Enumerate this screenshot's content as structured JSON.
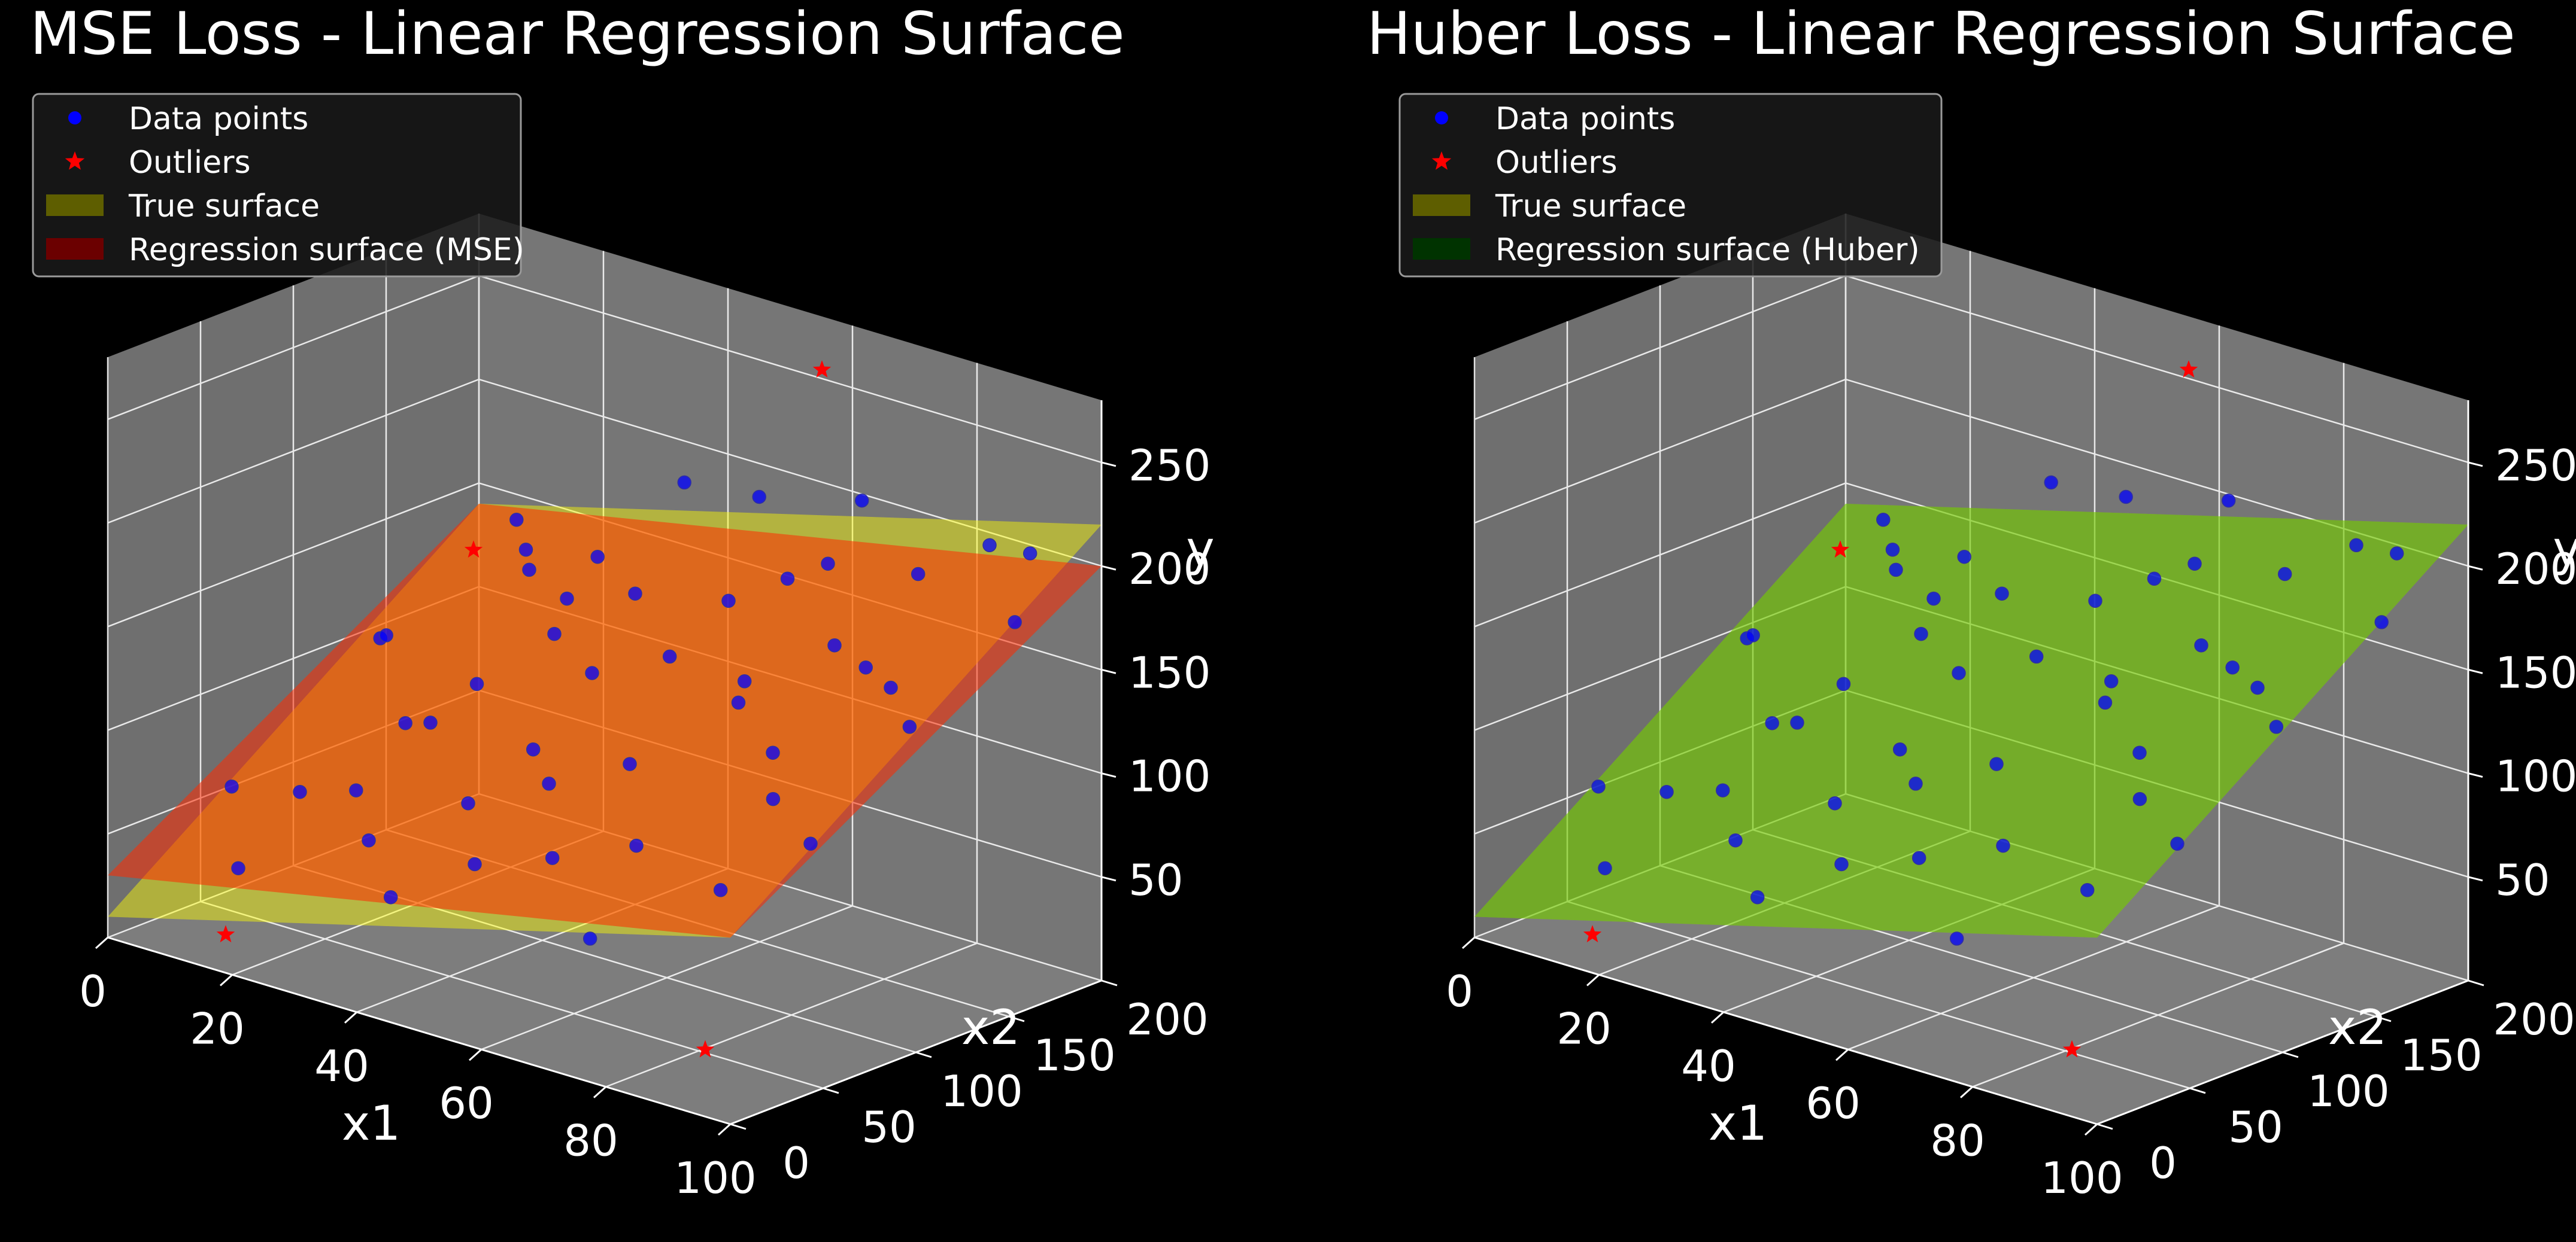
{
  "figure": {
    "background": "#000000",
    "pane_color": "#7a7a7a",
    "grid_color": "#ffffff"
  },
  "chart_data": [
    {
      "type": "scatter-3d",
      "title": "MSE Loss - Linear Regression Surface",
      "xlabel": "x1",
      "ylabel": "x2",
      "zlabel": "y",
      "xlim": [
        0,
        100
      ],
      "ylim": [
        0,
        200
      ],
      "zlim": [
        0,
        280
      ],
      "xticks": [
        0,
        20,
        40,
        60,
        80,
        100
      ],
      "yticks": [
        0,
        50,
        100,
        150,
        200
      ],
      "zticks": [
        50,
        100,
        150,
        200,
        250
      ],
      "grid": true,
      "legend_position": "top-left",
      "legend": [
        {
          "label": "Data points",
          "marker": "dot",
          "color": "#0000ff"
        },
        {
          "label": "Outliers",
          "marker": "star",
          "color": "#ff0000"
        },
        {
          "label": "True surface",
          "marker": "patch",
          "color": "#5e5e00"
        },
        {
          "label": "Regression surface (MSE)",
          "marker": "patch",
          "color": "#6b0000"
        }
      ],
      "surfaces": [
        {
          "name": "True surface",
          "color": "#ffff00",
          "opacity": 0.45,
          "intercept": 10,
          "coef_x1": 0.8,
          "coef_x2": 0.65
        },
        {
          "name": "Regression surface (MSE)",
          "color": "#ff2a00",
          "opacity": 0.55,
          "intercept": 30,
          "coef_x1": 0.6,
          "coef_x2": 0.55
        }
      ],
      "points": [
        {
          "x": 5,
          "y": 50,
          "z": 60
        },
        {
          "x": 10,
          "y": 70,
          "z": 55
        },
        {
          "x": 15,
          "y": 20,
          "z": 40
        },
        {
          "x": 20,
          "y": 160,
          "z": 140
        },
        {
          "x": 8,
          "y": 120,
          "z": 110
        },
        {
          "x": 25,
          "y": 90,
          "z": 95
        },
        {
          "x": 30,
          "y": 40,
          "z": 60
        },
        {
          "x": 12,
          "y": 180,
          "z": 150
        },
        {
          "x": 35,
          "y": 130,
          "z": 150
        },
        {
          "x": 40,
          "y": 60,
          "z": 80
        },
        {
          "x": 45,
          "y": 110,
          "z": 130
        },
        {
          "x": 50,
          "y": 30,
          "z": 70
        },
        {
          "x": 55,
          "y": 150,
          "z": 160
        },
        {
          "x": 60,
          "y": 80,
          "z": 110
        },
        {
          "x": 65,
          "y": 170,
          "z": 180
        },
        {
          "x": 70,
          "y": 50,
          "z": 90
        },
        {
          "x": 75,
          "y": 140,
          "z": 160
        },
        {
          "x": 80,
          "y": 90,
          "z": 130
        },
        {
          "x": 85,
          "y": 190,
          "z": 200
        },
        {
          "x": 90,
          "y": 120,
          "z": 160
        },
        {
          "x": 95,
          "y": 60,
          "z": 110
        },
        {
          "x": 18,
          "y": 100,
          "z": 85
        },
        {
          "x": 28,
          "y": 170,
          "z": 150
        },
        {
          "x": 38,
          "y": 25,
          "z": 45
        },
        {
          "x": 48,
          "y": 190,
          "z": 190
        },
        {
          "x": 58,
          "y": 45,
          "z": 75
        },
        {
          "x": 68,
          "y": 115,
          "z": 145
        },
        {
          "x": 78,
          "y": 175,
          "z": 185
        },
        {
          "x": 88,
          "y": 35,
          "z": 90
        },
        {
          "x": 98,
          "y": 160,
          "z": 185
        },
        {
          "x": 3,
          "y": 140,
          "z": 100
        },
        {
          "x": 22,
          "y": 60,
          "z": 70
        },
        {
          "x": 33,
          "y": 200,
          "z": 180
        },
        {
          "x": 43,
          "y": 85,
          "z": 100
        },
        {
          "x": 53,
          "y": 125,
          "z": 140
        },
        {
          "x": 63,
          "y": 195,
          "z": 200
        },
        {
          "x": 73,
          "y": 15,
          "z": 60
        },
        {
          "x": 83,
          "y": 130,
          "z": 160
        },
        {
          "x": 93,
          "y": 185,
          "z": 205
        },
        {
          "x": 60,
          "y": 165,
          "z": 170
        },
        {
          "x": 70,
          "y": 105,
          "z": 140
        },
        {
          "x": 40,
          "y": 150,
          "z": 150
        },
        {
          "x": 25,
          "y": 115,
          "z": 105
        },
        {
          "x": 15,
          "y": 175,
          "z": 140
        },
        {
          "x": 50,
          "y": 70,
          "z": 95
        },
        {
          "x": 86,
          "y": 70,
          "z": 120
        },
        {
          "x": 96,
          "y": 110,
          "z": 150
        },
        {
          "x": 30,
          "y": 140,
          "z": 125
        }
      ],
      "outliers": [
        {
          "x": 70,
          "y": 150,
          "z": 285
        },
        {
          "x": 20,
          "y": 130,
          "z": 160
        },
        {
          "x": 10,
          "y": 30,
          "z": 0
        },
        {
          "x": 90,
          "y": 20,
          "z": 20
        }
      ]
    },
    {
      "type": "scatter-3d",
      "title": "Huber Loss - Linear Regression Surface",
      "xlabel": "x1",
      "ylabel": "x2",
      "zlabel": "y",
      "xlim": [
        0,
        100
      ],
      "ylim": [
        0,
        200
      ],
      "zlim": [
        0,
        280
      ],
      "xticks": [
        0,
        20,
        40,
        60,
        80,
        100
      ],
      "yticks": [
        0,
        50,
        100,
        150,
        200
      ],
      "zticks": [
        50,
        100,
        150,
        200,
        250
      ],
      "grid": true,
      "legend_position": "top-left",
      "legend": [
        {
          "label": "Data points",
          "marker": "dot",
          "color": "#0000ff"
        },
        {
          "label": "Outliers",
          "marker": "star",
          "color": "#ff0000"
        },
        {
          "label": "True surface",
          "marker": "patch",
          "color": "#5e5e00"
        },
        {
          "label": "Regression surface (Huber)",
          "marker": "patch",
          "color": "#003300"
        }
      ],
      "surfaces": [
        {
          "name": "True surface",
          "color": "#ffff00",
          "opacity": 0.45,
          "intercept": 10,
          "coef_x1": 0.8,
          "coef_x2": 0.65
        },
        {
          "name": "Regression surface (Huber)",
          "color": "#00a000",
          "opacity": 0.35,
          "intercept": 10,
          "coef_x1": 0.8,
          "coef_x2": 0.65
        }
      ],
      "points": [
        {
          "x": 5,
          "y": 50,
          "z": 60
        },
        {
          "x": 10,
          "y": 70,
          "z": 55
        },
        {
          "x": 15,
          "y": 20,
          "z": 40
        },
        {
          "x": 20,
          "y": 160,
          "z": 140
        },
        {
          "x": 8,
          "y": 120,
          "z": 110
        },
        {
          "x": 25,
          "y": 90,
          "z": 95
        },
        {
          "x": 30,
          "y": 40,
          "z": 60
        },
        {
          "x": 12,
          "y": 180,
          "z": 150
        },
        {
          "x": 35,
          "y": 130,
          "z": 150
        },
        {
          "x": 40,
          "y": 60,
          "z": 80
        },
        {
          "x": 45,
          "y": 110,
          "z": 130
        },
        {
          "x": 50,
          "y": 30,
          "z": 70
        },
        {
          "x": 55,
          "y": 150,
          "z": 160
        },
        {
          "x": 60,
          "y": 80,
          "z": 110
        },
        {
          "x": 65,
          "y": 170,
          "z": 180
        },
        {
          "x": 70,
          "y": 50,
          "z": 90
        },
        {
          "x": 75,
          "y": 140,
          "z": 160
        },
        {
          "x": 80,
          "y": 90,
          "z": 130
        },
        {
          "x": 85,
          "y": 190,
          "z": 200
        },
        {
          "x": 90,
          "y": 120,
          "z": 160
        },
        {
          "x": 95,
          "y": 60,
          "z": 110
        },
        {
          "x": 18,
          "y": 100,
          "z": 85
        },
        {
          "x": 28,
          "y": 170,
          "z": 150
        },
        {
          "x": 38,
          "y": 25,
          "z": 45
        },
        {
          "x": 48,
          "y": 190,
          "z": 190
        },
        {
          "x": 58,
          "y": 45,
          "z": 75
        },
        {
          "x": 68,
          "y": 115,
          "z": 145
        },
        {
          "x": 78,
          "y": 175,
          "z": 185
        },
        {
          "x": 88,
          "y": 35,
          "z": 90
        },
        {
          "x": 98,
          "y": 160,
          "z": 185
        },
        {
          "x": 3,
          "y": 140,
          "z": 100
        },
        {
          "x": 22,
          "y": 60,
          "z": 70
        },
        {
          "x": 33,
          "y": 200,
          "z": 180
        },
        {
          "x": 43,
          "y": 85,
          "z": 100
        },
        {
          "x": 53,
          "y": 125,
          "z": 140
        },
        {
          "x": 63,
          "y": 195,
          "z": 200
        },
        {
          "x": 73,
          "y": 15,
          "z": 60
        },
        {
          "x": 83,
          "y": 130,
          "z": 160
        },
        {
          "x": 93,
          "y": 185,
          "z": 205
        },
        {
          "x": 60,
          "y": 165,
          "z": 170
        },
        {
          "x": 70,
          "y": 105,
          "z": 140
        },
        {
          "x": 40,
          "y": 150,
          "z": 150
        },
        {
          "x": 25,
          "y": 115,
          "z": 105
        },
        {
          "x": 15,
          "y": 175,
          "z": 140
        },
        {
          "x": 50,
          "y": 70,
          "z": 95
        },
        {
          "x": 86,
          "y": 70,
          "z": 120
        },
        {
          "x": 96,
          "y": 110,
          "z": 150
        },
        {
          "x": 30,
          "y": 140,
          "z": 125
        }
      ],
      "outliers": [
        {
          "x": 70,
          "y": 150,
          "z": 285
        },
        {
          "x": 20,
          "y": 130,
          "z": 160
        },
        {
          "x": 10,
          "y": 30,
          "z": 0
        },
        {
          "x": 90,
          "y": 20,
          "z": 20
        }
      ]
    }
  ]
}
